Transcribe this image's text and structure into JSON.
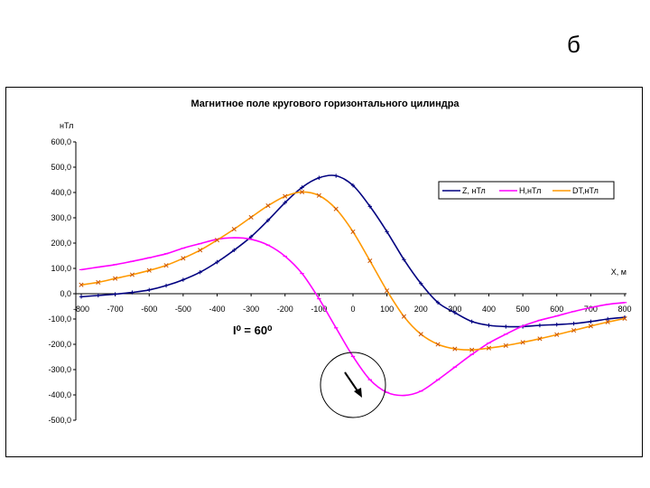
{
  "corner_letter": "б",
  "annotation": {
    "text": "I⁰ = 60⁰"
  },
  "chart_data": {
    "type": "line",
    "title": "Магнитное поле кругового горизонтального цилиндра",
    "ylabel": "нТл",
    "xlabel": "X, м",
    "xlim": [
      -800,
      800
    ],
    "ylim": [
      -500,
      600
    ],
    "x_ticks": [
      -800,
      -700,
      -600,
      -500,
      -400,
      -300,
      -200,
      -100,
      0,
      100,
      200,
      300,
      400,
      500,
      600,
      700,
      800
    ],
    "y_ticks": [
      "600,0",
      "500,0",
      "400,0",
      "300,0",
      "200,0",
      "100,0",
      "0,0",
      "-100,0",
      "-200,0",
      "-300,0",
      "-400,0",
      "-500,0"
    ],
    "y_tick_values": [
      600,
      500,
      400,
      300,
      200,
      100,
      0,
      -100,
      -200,
      -300,
      -400,
      -500
    ],
    "grid": false,
    "legend_position": "right",
    "x": [
      -800,
      -750,
      -700,
      -650,
      -600,
      -550,
      -500,
      -450,
      -400,
      -350,
      -300,
      -250,
      -200,
      -150,
      -100,
      -50,
      0,
      50,
      100,
      150,
      200,
      250,
      300,
      350,
      400,
      450,
      500,
      550,
      600,
      650,
      700,
      750,
      800
    ],
    "series": [
      {
        "name": "Z, нТл",
        "color": "#000080",
        "marker": "plus",
        "values": [
          -12,
          -7,
          -2,
          5,
          15,
          32,
          55,
          85,
          125,
          172,
          225,
          290,
          360,
          420,
          458,
          466,
          428,
          345,
          245,
          135,
          40,
          -35,
          -75,
          -110,
          -125,
          -130,
          -130,
          -125,
          -122,
          -118,
          -110,
          -100,
          -93
        ]
      },
      {
        "name": "H,нТл",
        "color": "#FF00FF",
        "marker": "dash",
        "values": [
          95,
          105,
          115,
          128,
          142,
          158,
          180,
          198,
          215,
          221,
          215,
          192,
          148,
          80,
          -20,
          -135,
          -248,
          -340,
          -390,
          -402,
          -385,
          -340,
          -290,
          -240,
          -195,
          -160,
          -128,
          -105,
          -88,
          -70,
          -55,
          -42,
          -35
        ]
      },
      {
        "name": "DT,нТл",
        "color": "#FF9900",
        "marker": "x",
        "values": [
          35,
          45,
          60,
          75,
          92,
          112,
          140,
          172,
          212,
          255,
          302,
          348,
          385,
          402,
          388,
          335,
          245,
          130,
          12,
          -90,
          -160,
          -200,
          -218,
          -222,
          -215,
          -205,
          -192,
          -178,
          -162,
          -145,
          -128,
          -112,
          -98
        ]
      }
    ]
  }
}
